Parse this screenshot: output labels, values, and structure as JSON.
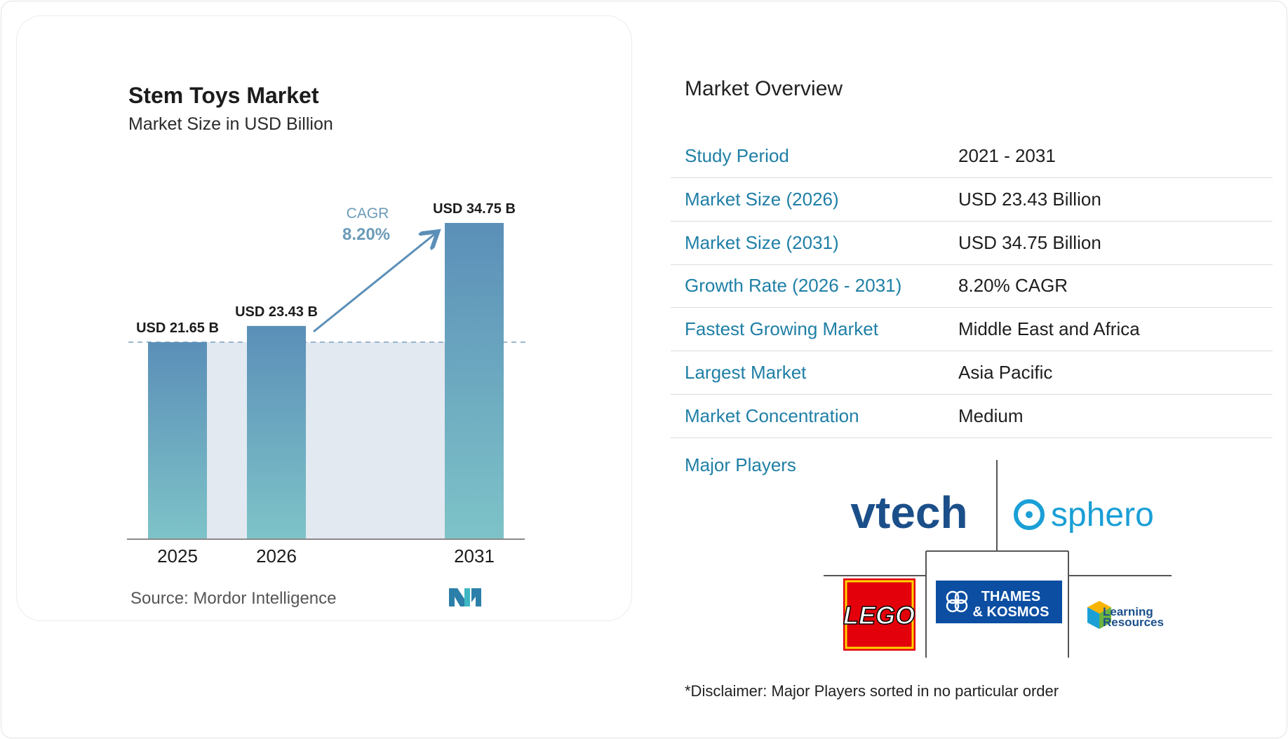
{
  "chart_title": "Stem Toys Market",
  "chart_subtitle": "Market Size in USD Billion",
  "source": "Source: Mordor Intelligence",
  "cagr_label": "CAGR",
  "cagr_value": "8.20%",
  "chart_data": {
    "type": "bar",
    "categories": [
      "2025",
      "2026",
      "2031"
    ],
    "values": [
      21.65,
      23.43,
      34.75
    ],
    "data_labels": [
      "USD 21.65 B",
      "USD 23.43 B",
      "USD 34.75 B"
    ],
    "title": "Stem Toys Market",
    "subtitle": "Market Size in USD Billion",
    "ylim": [
      0,
      37
    ],
    "grid": false
  },
  "overview": {
    "title": "Market Overview",
    "rows": [
      {
        "key": "Study Period",
        "value": "2021 - 2031"
      },
      {
        "key": "Market Size (2026)",
        "value": "USD 23.43 Billion"
      },
      {
        "key": "Market Size (2031)",
        "value": "USD 34.75 Billion"
      },
      {
        "key": "Growth Rate (2026 - 2031)",
        "value": "8.20% CAGR"
      },
      {
        "key": "Fastest Growing Market",
        "value": "Middle East and Africa"
      },
      {
        "key": "Largest Market",
        "value": "Asia Pacific"
      },
      {
        "key": "Market Concentration",
        "value": "Medium"
      }
    ],
    "major_players_label": "Major Players",
    "players": [
      "vtech",
      "sphero",
      "LEGO",
      "THAMES",
      "& KOSMOS",
      "Learning",
      "Resources"
    ],
    "disclaimer": "*Disclaimer: Major Players sorted in no particular order"
  },
  "colors": {
    "bar_top": "#5b8fb8",
    "bar_bottom": "#7ec3c8",
    "band": "#e2e9f1",
    "key_text": "#1f7fa6",
    "cagr_text": "#6b9bb8"
  }
}
